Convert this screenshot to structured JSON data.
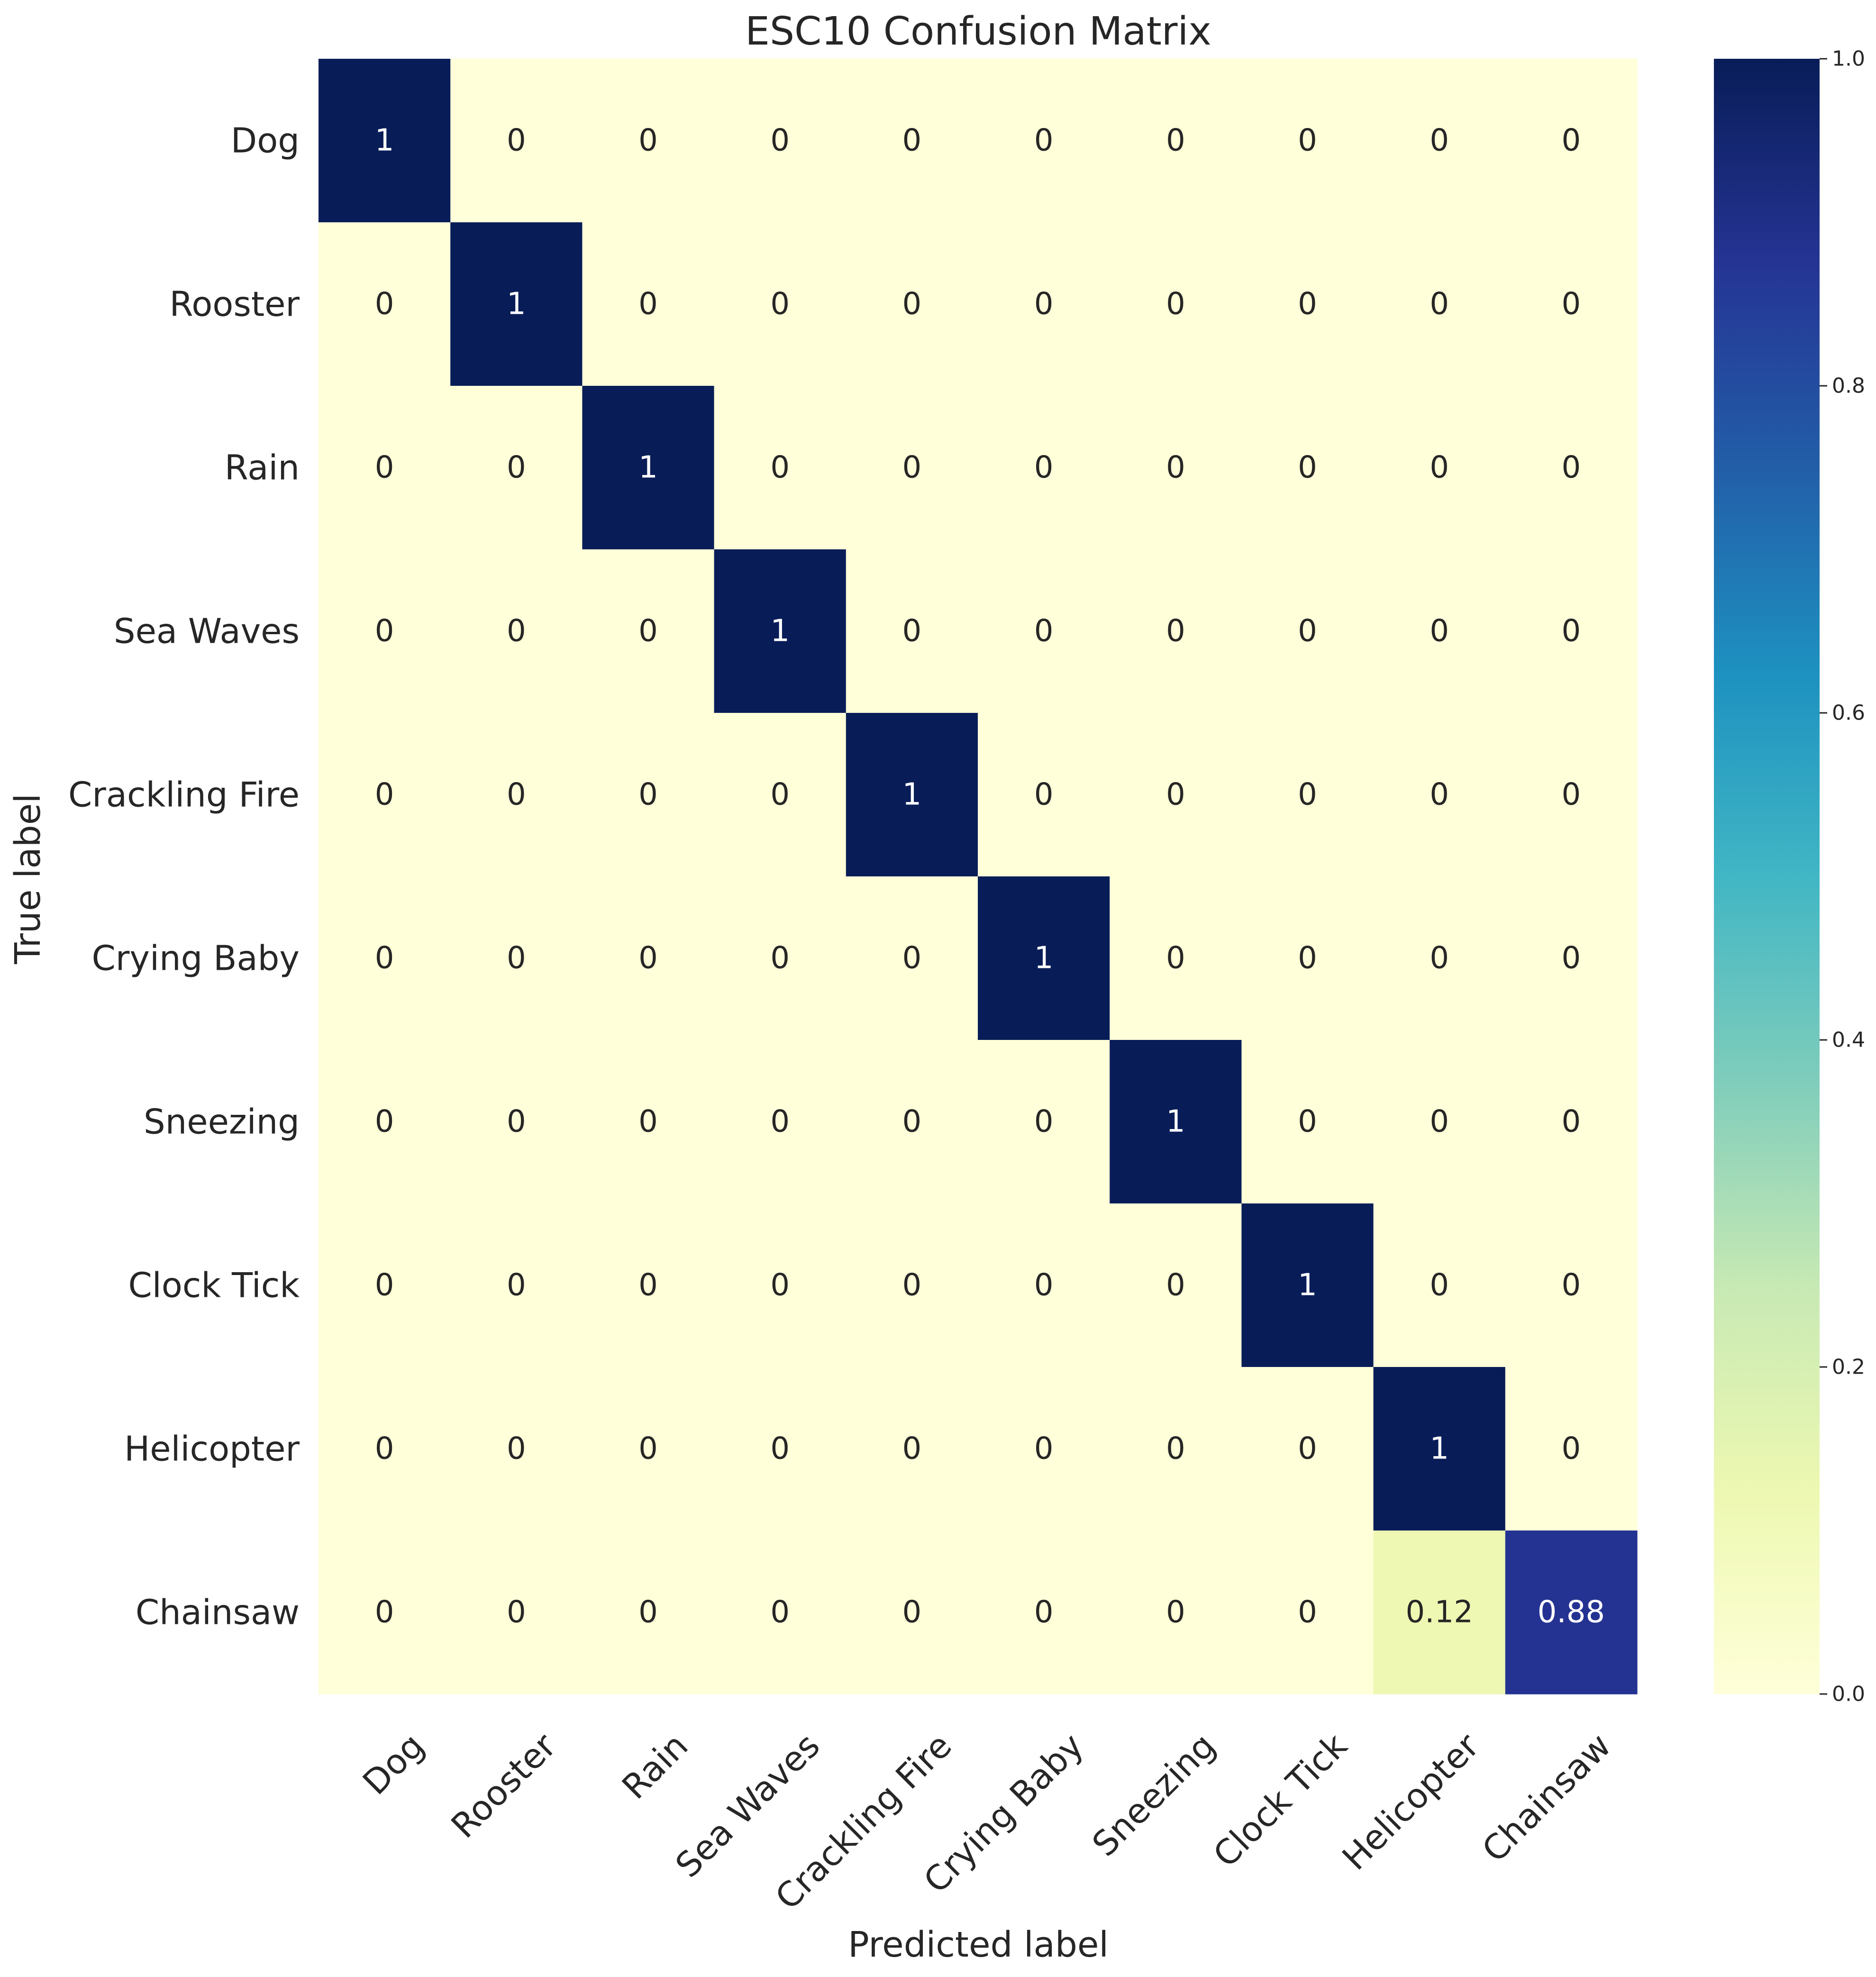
{
  "chart_data": {
    "type": "heatmap",
    "title": "ESC10 Confusion Matrix",
    "xlabel": "Predicted label",
    "ylabel": "True label",
    "x_categories": [
      "Dog",
      "Rooster",
      "Rain",
      "Sea Waves",
      "Crackling Fire",
      "Crying Baby",
      "Sneezing",
      "Clock Tick",
      "Helicopter",
      "Chainsaw"
    ],
    "y_categories": [
      "Dog",
      "Rooster",
      "Rain",
      "Sea Waves",
      "Crackling Fire",
      "Crying Baby",
      "Sneezing",
      "Clock Tick",
      "Helicopter",
      "Chainsaw"
    ],
    "values": [
      [
        1,
        0,
        0,
        0,
        0,
        0,
        0,
        0,
        0,
        0
      ],
      [
        0,
        1,
        0,
        0,
        0,
        0,
        0,
        0,
        0,
        0
      ],
      [
        0,
        0,
        1,
        0,
        0,
        0,
        0,
        0,
        0,
        0
      ],
      [
        0,
        0,
        0,
        1,
        0,
        0,
        0,
        0,
        0,
        0
      ],
      [
        0,
        0,
        0,
        0,
        1,
        0,
        0,
        0,
        0,
        0
      ],
      [
        0,
        0,
        0,
        0,
        0,
        1,
        0,
        0,
        0,
        0
      ],
      [
        0,
        0,
        0,
        0,
        0,
        0,
        1,
        0,
        0,
        0
      ],
      [
        0,
        0,
        0,
        0,
        0,
        0,
        0,
        1,
        0,
        0
      ],
      [
        0,
        0,
        0,
        0,
        0,
        0,
        0,
        0,
        1,
        0
      ],
      [
        0,
        0,
        0,
        0,
        0,
        0,
        0,
        0,
        0.12,
        0.88
      ]
    ],
    "colormap": "YlGnBu",
    "colorbar_range": [
      0.0,
      1.0
    ],
    "colorbar_ticks": [
      "0.0",
      "0.2",
      "0.4",
      "0.6",
      "0.8",
      "1.0"
    ],
    "grid": false
  }
}
